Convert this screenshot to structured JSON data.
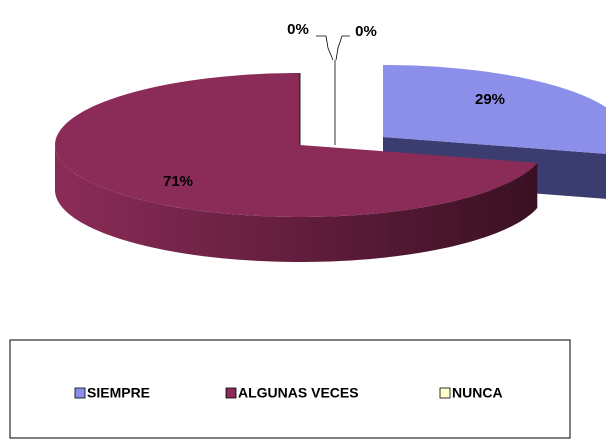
{
  "chart_data": {
    "type": "pie",
    "categories": [
      "SIEMPRE",
      "ALGUNAS VECES",
      "NUNCA",
      null
    ],
    "values": [
      29,
      71,
      0,
      0
    ],
    "value_labels": [
      "29%",
      "71%",
      "0%",
      "0%"
    ],
    "colors": [
      "#8b8fea",
      "#8b2c58",
      "#ffffcc",
      "#ccffff"
    ],
    "legend": "bottom"
  }
}
